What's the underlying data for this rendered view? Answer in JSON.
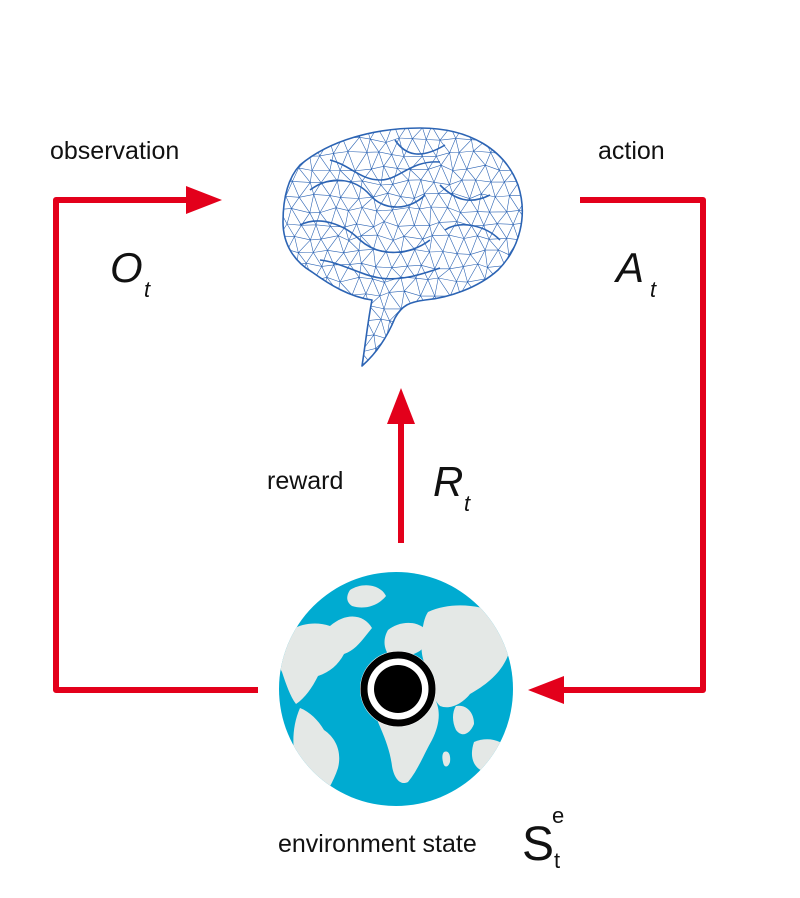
{
  "colors": {
    "arrow": "#e3001b",
    "brain_mesh": "#2c64b4",
    "ocean": "#00abd1",
    "land": "#e4e8e6",
    "target": "#000000"
  },
  "icons": {
    "agent": "brain-mesh-icon",
    "environment": "globe-icon",
    "state_marker": "target-icon"
  },
  "labels": {
    "observation": "observation",
    "action": "action",
    "reward": "reward",
    "environment_state": "environment state"
  },
  "math": {
    "observation": {
      "symbol": "O",
      "subscript": "t"
    },
    "action": {
      "symbol": "A",
      "subscript": "t"
    },
    "reward": {
      "symbol": "R",
      "subscript": "t"
    },
    "state": {
      "symbol": "S",
      "subscript": "t",
      "superscript": "e"
    }
  }
}
